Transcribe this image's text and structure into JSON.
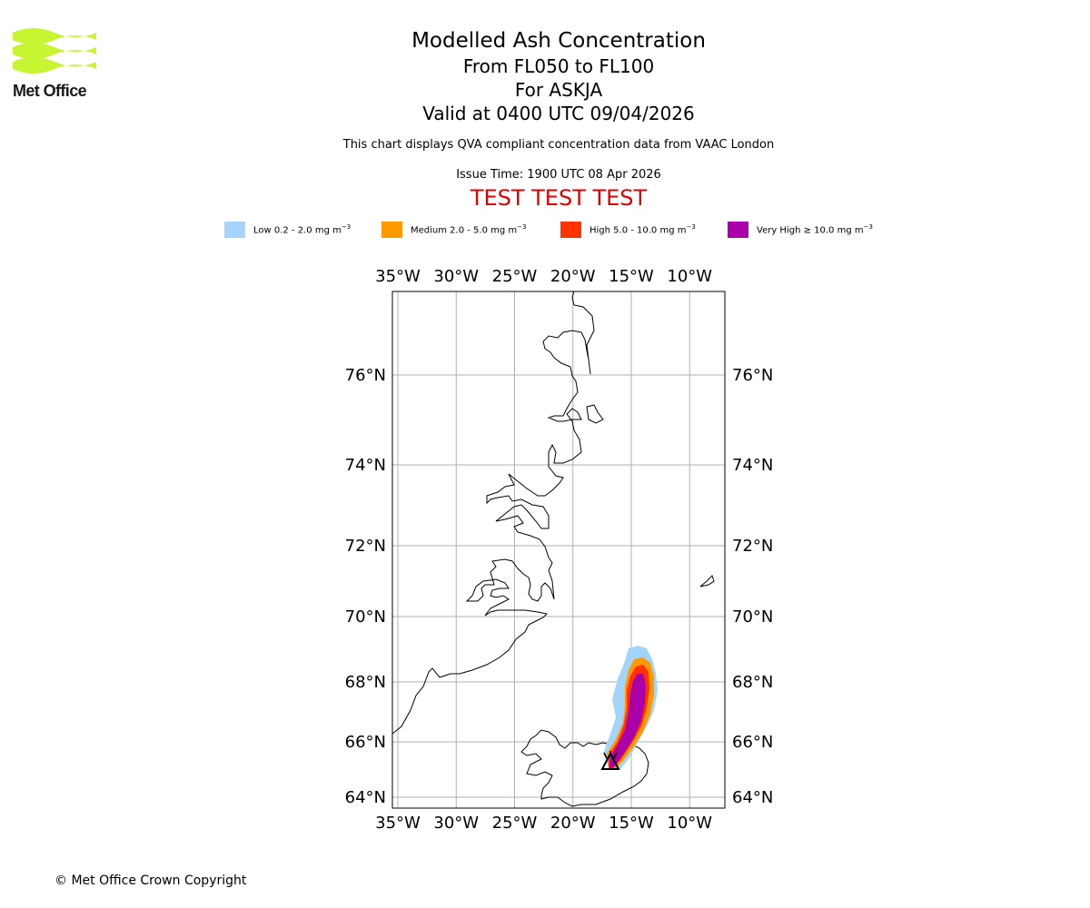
{
  "header": {
    "logo_text": "Met Office",
    "title": "Modelled Ash Concentration",
    "level_range": "From FL050 to FL100",
    "volcano": "For ASKJA",
    "valid_time": "Valid at 0400 UTC 09/04/2026",
    "description": "This chart displays QVA compliant concentration data from VAAC London",
    "issue_time": "Issue Time: 1900 UTC 08 Apr 2026",
    "test_banner": "TEST TEST TEST"
  },
  "legend": [
    {
      "label": "Low 0.2 - 2.0 mg m",
      "color": "#a3d5fa"
    },
    {
      "label": "Medium 2.0 - 5.0 mg m",
      "color": "#ff9900"
    },
    {
      "label": "High 5.0 - 10.0 mg m",
      "color": "#ff3300"
    },
    {
      "label": "Very High ≥ 10.0 mg m",
      "color": "#aa00aa"
    }
  ],
  "legend_unit_exponent": "−3",
  "map": {
    "lon_ticks": [
      {
        "value": -35,
        "label": "35°W"
      },
      {
        "value": -30,
        "label": "30°W"
      },
      {
        "value": -25,
        "label": "25°W"
      },
      {
        "value": -20,
        "label": "20°W"
      },
      {
        "value": -15,
        "label": "15°W"
      },
      {
        "value": -10,
        "label": "10°W"
      }
    ],
    "lat_ticks": [
      {
        "value": 76,
        "label": "76°N"
      },
      {
        "value": 74,
        "label": "74°N"
      },
      {
        "value": 72,
        "label": "72°N"
      },
      {
        "value": 70,
        "label": "70°N"
      },
      {
        "value": 68,
        "label": "68°N"
      },
      {
        "value": 66,
        "label": "66°N"
      },
      {
        "value": 64,
        "label": "64°N"
      }
    ],
    "volcano_marker": {
      "name": "volcano-icon",
      "lon": -16.8,
      "lat": 65.05
    }
  },
  "footer": {
    "copyright": "© Met Office Crown Copyright"
  }
}
